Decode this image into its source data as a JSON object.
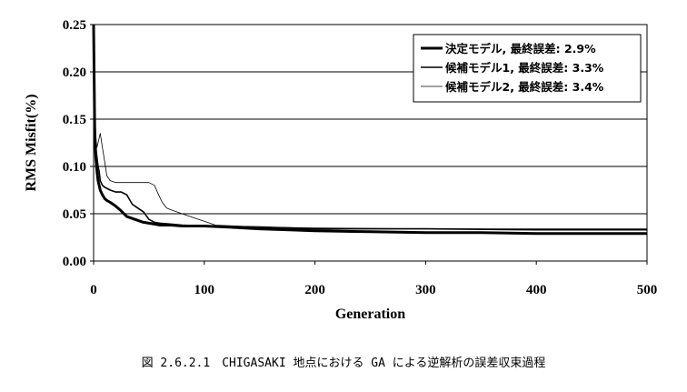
{
  "caption": "図 2.6.2.1　CHIGASAKI 地点における GA による逆解析の誤差収束過程",
  "chart_data": {
    "type": "line",
    "title": "",
    "xlabel": "Generation",
    "ylabel": "RMS Misfit(%)",
    "xlim": [
      0,
      500
    ],
    "ylim": [
      0,
      0.25
    ],
    "x_ticks": [
      0,
      100,
      200,
      300,
      400,
      500
    ],
    "x_tick_labels": [
      "0",
      "100",
      "200",
      "300",
      "400",
      "500"
    ],
    "y_ticks": [
      0,
      0.05,
      0.1,
      0.15,
      0.2,
      0.25
    ],
    "y_tick_labels": [
      "0.00",
      "0.05",
      "0.10",
      "0.15",
      "0.20",
      "0.25"
    ],
    "grid": "horizontal",
    "legend_position": "top-right",
    "series": [
      {
        "name": "決定モデル, 最終誤差: 2.9%",
        "color": "#000000",
        "style": "thick",
        "x": [
          0,
          1,
          2,
          3,
          4,
          5,
          6,
          8,
          10,
          12,
          15,
          20,
          25,
          30,
          35,
          40,
          45,
          50,
          55,
          60,
          70,
          80,
          100,
          120,
          150,
          200,
          250,
          300,
          350,
          400,
          450,
          500
        ],
        "y": [
          0.25,
          0.14,
          0.11,
          0.095,
          0.085,
          0.08,
          0.075,
          0.07,
          0.066,
          0.064,
          0.062,
          0.058,
          0.053,
          0.047,
          0.045,
          0.043,
          0.041,
          0.04,
          0.039,
          0.038,
          0.038,
          0.037,
          0.037,
          0.036,
          0.034,
          0.032,
          0.031,
          0.03,
          0.03,
          0.029,
          0.029,
          0.029
        ]
      },
      {
        "name": "候補モデル1, 最終誤差: 3.3%",
        "color": "#000000",
        "style": "medium",
        "x": [
          0,
          2,
          4,
          5,
          6,
          8,
          10,
          15,
          20,
          25,
          30,
          35,
          40,
          45,
          50,
          55,
          60,
          70,
          80,
          100,
          150,
          200,
          300,
          400,
          500
        ],
        "y": [
          0.2,
          0.12,
          0.1,
          0.095,
          0.085,
          0.08,
          0.078,
          0.075,
          0.073,
          0.073,
          0.07,
          0.06,
          0.056,
          0.052,
          0.044,
          0.041,
          0.04,
          0.039,
          0.038,
          0.037,
          0.036,
          0.034,
          0.034,
          0.033,
          0.033
        ]
      },
      {
        "name": "候補モデル2, 最終誤差: 3.4%",
        "color": "#000000",
        "style": "thin",
        "x": [
          0,
          3,
          5,
          6,
          8,
          10,
          12,
          15,
          20,
          25,
          30,
          35,
          40,
          50,
          55,
          58,
          62,
          66,
          70,
          80,
          90,
          100,
          110,
          150,
          200,
          300,
          400,
          500
        ],
        "y": [
          0.15,
          0.12,
          0.13,
          0.135,
          0.12,
          0.105,
          0.09,
          0.085,
          0.083,
          0.083,
          0.083,
          0.083,
          0.083,
          0.083,
          0.08,
          0.072,
          0.062,
          0.056,
          0.054,
          0.05,
          0.046,
          0.042,
          0.038,
          0.036,
          0.035,
          0.034,
          0.034,
          0.034
        ]
      }
    ]
  }
}
